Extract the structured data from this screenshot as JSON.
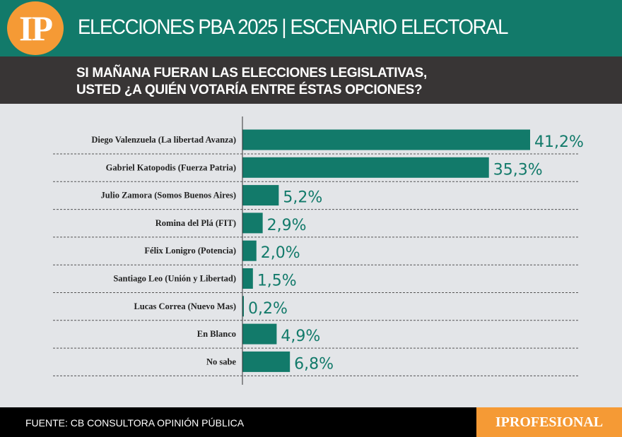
{
  "header": {
    "logo": "IP",
    "title": "ELECCIONES PBA 2025 | ESCENARIO ELECTORAL"
  },
  "question": {
    "line1": "SI MAÑANA FUERAN LAS ELECCIONES LEGISLATIVAS,",
    "line2": "USTED ¿A QUIÉN VOTARÍA ENTRE ÉSTAS OPCIONES?"
  },
  "footer": {
    "source": "FUENTE: CB CONSULTORA OPINIÓN PÚBLICA",
    "brand": "IPROFESIONAL"
  },
  "colors": {
    "bar": "#127a6a",
    "accent": "#f59a35",
    "header": "#127a6a"
  },
  "chart_data": {
    "type": "bar",
    "orientation": "horizontal",
    "grid": false,
    "categories": [
      "Diego Valenzuela (La libertad Avanza)",
      "Gabriel Katopodis (Fuerza Patria)",
      "Julio Zamora (Somos Buenos Aires)",
      "Romina del Plá (FIT)",
      "Félix Lonigro (Potencia)",
      "Santiago Leo (Unión y Libertad)",
      "Lucas Correa (Nuevo Mas)",
      "En Blanco",
      "No sabe"
    ],
    "values": [
      41.2,
      35.3,
      5.2,
      2.9,
      2.0,
      1.5,
      0.2,
      4.9,
      6.8
    ],
    "labels": [
      "41,2%",
      "35,3%",
      "5,2%",
      "2,9%",
      "2,0%",
      "1,5%",
      "0,2%",
      "4,9%",
      "6,8%"
    ]
  }
}
